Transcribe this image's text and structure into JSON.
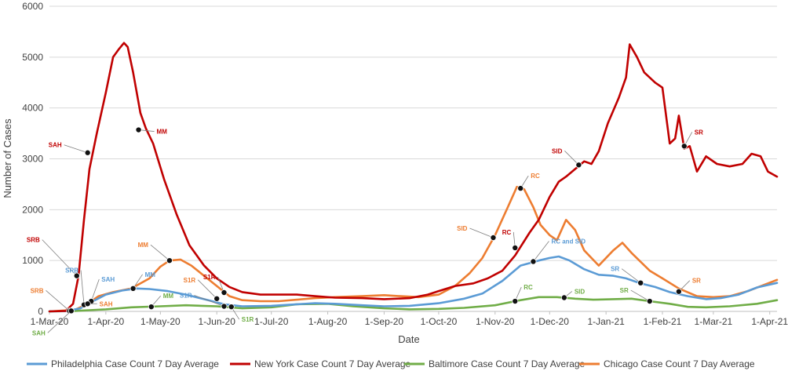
{
  "chart_data": {
    "type": "line",
    "title": "",
    "xlabel": "Date",
    "ylabel": "Number of Cases",
    "ylim": [
      0,
      6000
    ],
    "yticks": [
      0,
      1000,
      2000,
      3000,
      4000,
      5000,
      6000
    ],
    "xlim": [
      "2020-03-01",
      "2021-04-05"
    ],
    "xticks": [
      {
        "date": "2020-03-01",
        "label": "1-Mar-20"
      },
      {
        "date": "2020-04-01",
        "label": "1-Apr-20"
      },
      {
        "date": "2020-05-01",
        "label": "1-May-20"
      },
      {
        "date": "2020-06-01",
        "label": "1-Jun-20"
      },
      {
        "date": "2020-07-01",
        "label": "1-Jul-20"
      },
      {
        "date": "2020-08-01",
        "label": "1-Aug-20"
      },
      {
        "date": "2020-09-01",
        "label": "1-Sep-20"
      },
      {
        "date": "2020-10-01",
        "label": "1-Oct-20"
      },
      {
        "date": "2020-11-01",
        "label": "1-Nov-20"
      },
      {
        "date": "2020-12-01",
        "label": "1-Dec-20"
      },
      {
        "date": "2021-01-01",
        "label": "1-Jan-21"
      },
      {
        "date": "2021-02-01",
        "label": "1-Feb-21"
      },
      {
        "date": "2021-03-01",
        "label": "1-Mar-21"
      },
      {
        "date": "2021-04-01",
        "label": "1-Apr-21"
      }
    ],
    "grid": "horizontal",
    "legend_position": "bottom",
    "series": [
      {
        "name": "Philadelphia Case Count 7 Day Average",
        "color": "#5B9BD5",
        "points": [
          [
            "2020-03-01",
            0
          ],
          [
            "2020-03-10",
            5
          ],
          [
            "2020-03-18",
            60
          ],
          [
            "2020-03-25",
            200
          ],
          [
            "2020-04-01",
            330
          ],
          [
            "2020-04-10",
            410
          ],
          [
            "2020-04-18",
            450
          ],
          [
            "2020-04-25",
            440
          ],
          [
            "2020-05-05",
            400
          ],
          [
            "2020-05-15",
            330
          ],
          [
            "2020-05-25",
            240
          ],
          [
            "2020-06-05",
            140
          ],
          [
            "2020-06-15",
            100
          ],
          [
            "2020-07-01",
            110
          ],
          [
            "2020-07-15",
            140
          ],
          [
            "2020-07-25",
            160
          ],
          [
            "2020-08-05",
            150
          ],
          [
            "2020-08-20",
            120
          ],
          [
            "2020-09-01",
            100
          ],
          [
            "2020-09-15",
            110
          ],
          [
            "2020-10-01",
            160
          ],
          [
            "2020-10-15",
            250
          ],
          [
            "2020-10-25",
            350
          ],
          [
            "2020-11-05",
            600
          ],
          [
            "2020-11-15",
            900
          ],
          [
            "2020-11-25",
            1000
          ],
          [
            "2020-12-01",
            1050
          ],
          [
            "2020-12-06",
            1080
          ],
          [
            "2020-12-12",
            1000
          ],
          [
            "2020-12-20",
            830
          ],
          [
            "2020-12-28",
            720
          ],
          [
            "2021-01-05",
            700
          ],
          [
            "2021-01-12",
            650
          ],
          [
            "2021-01-20",
            550
          ],
          [
            "2021-01-28",
            480
          ],
          [
            "2021-02-05",
            380
          ],
          [
            "2021-02-15",
            300
          ],
          [
            "2021-02-25",
            240
          ],
          [
            "2021-03-05",
            260
          ],
          [
            "2021-03-15",
            330
          ],
          [
            "2021-03-25",
            470
          ],
          [
            "2021-04-05",
            560
          ]
        ]
      },
      {
        "name": "New York Case Count 7 Day Average",
        "color": "#C00000",
        "points": [
          [
            "2020-03-01",
            0
          ],
          [
            "2020-03-10",
            10
          ],
          [
            "2020-03-14",
            150
          ],
          [
            "2020-03-17",
            700
          ],
          [
            "2020-03-20",
            1800
          ],
          [
            "2020-03-23",
            2800
          ],
          [
            "2020-03-27",
            3500
          ],
          [
            "2020-04-01",
            4300
          ],
          [
            "2020-04-05",
            5000
          ],
          [
            "2020-04-08",
            5150
          ],
          [
            "2020-04-11",
            5280
          ],
          [
            "2020-04-13",
            5200
          ],
          [
            "2020-04-16",
            4700
          ],
          [
            "2020-04-20",
            3900
          ],
          [
            "2020-04-23",
            3600
          ],
          [
            "2020-04-27",
            3300
          ],
          [
            "2020-05-03",
            2600
          ],
          [
            "2020-05-10",
            1900
          ],
          [
            "2020-05-17",
            1300
          ],
          [
            "2020-05-25",
            900
          ],
          [
            "2020-06-01",
            650
          ],
          [
            "2020-06-08",
            480
          ],
          [
            "2020-06-15",
            380
          ],
          [
            "2020-06-25",
            330
          ],
          [
            "2020-07-05",
            330
          ],
          [
            "2020-07-15",
            330
          ],
          [
            "2020-07-25",
            300
          ],
          [
            "2020-08-05",
            270
          ],
          [
            "2020-08-20",
            260
          ],
          [
            "2020-09-01",
            240
          ],
          [
            "2020-09-15",
            260
          ],
          [
            "2020-09-25",
            330
          ],
          [
            "2020-10-01",
            400
          ],
          [
            "2020-10-10",
            500
          ],
          [
            "2020-10-20",
            550
          ],
          [
            "2020-10-28",
            650
          ],
          [
            "2020-11-05",
            800
          ],
          [
            "2020-11-12",
            1100
          ],
          [
            "2020-11-20",
            1550
          ],
          [
            "2020-11-25",
            1800
          ],
          [
            "2020-12-01",
            2250
          ],
          [
            "2020-12-06",
            2550
          ],
          [
            "2020-12-10",
            2650
          ],
          [
            "2020-12-15",
            2800
          ],
          [
            "2020-12-20",
            2950
          ],
          [
            "2020-12-24",
            2900
          ],
          [
            "2020-12-28",
            3150
          ],
          [
            "2021-01-02",
            3700
          ],
          [
            "2021-01-08",
            4200
          ],
          [
            "2021-01-12",
            4600
          ],
          [
            "2021-01-14",
            5250
          ],
          [
            "2021-01-18",
            5000
          ],
          [
            "2021-01-22",
            4700
          ],
          [
            "2021-01-28",
            4500
          ],
          [
            "2021-02-01",
            4400
          ],
          [
            "2021-02-05",
            3300
          ],
          [
            "2021-02-08",
            3400
          ],
          [
            "2021-02-10",
            3850
          ],
          [
            "2021-02-13",
            3200
          ],
          [
            "2021-02-16",
            3250
          ],
          [
            "2021-02-20",
            2750
          ],
          [
            "2021-02-25",
            3050
          ],
          [
            "2021-03-03",
            2900
          ],
          [
            "2021-03-10",
            2850
          ],
          [
            "2021-03-17",
            2900
          ],
          [
            "2021-03-22",
            3100
          ],
          [
            "2021-03-27",
            3050
          ],
          [
            "2021-03-31",
            2750
          ],
          [
            "2021-04-05",
            2650
          ]
        ]
      },
      {
        "name": "Baltimore Case Count 7 Day Average",
        "color": "#70AD47",
        "points": [
          [
            "2020-03-01",
            0
          ],
          [
            "2020-03-15",
            10
          ],
          [
            "2020-04-01",
            40
          ],
          [
            "2020-04-15",
            80
          ],
          [
            "2020-05-01",
            100
          ],
          [
            "2020-05-15",
            120
          ],
          [
            "2020-06-01",
            100
          ],
          [
            "2020-06-15",
            60
          ],
          [
            "2020-07-01",
            80
          ],
          [
            "2020-07-15",
            140
          ],
          [
            "2020-08-01",
            150
          ],
          [
            "2020-08-15",
            100
          ],
          [
            "2020-09-01",
            60
          ],
          [
            "2020-09-15",
            40
          ],
          [
            "2020-10-01",
            50
          ],
          [
            "2020-10-15",
            70
          ],
          [
            "2020-11-01",
            120
          ],
          [
            "2020-11-15",
            220
          ],
          [
            "2020-11-25",
            280
          ],
          [
            "2020-12-05",
            280
          ],
          [
            "2020-12-15",
            250
          ],
          [
            "2020-12-25",
            230
          ],
          [
            "2021-01-05",
            240
          ],
          [
            "2021-01-15",
            250
          ],
          [
            "2021-01-25",
            200
          ],
          [
            "2021-02-05",
            150
          ],
          [
            "2021-02-15",
            90
          ],
          [
            "2021-02-25",
            80
          ],
          [
            "2021-03-10",
            100
          ],
          [
            "2021-03-25",
            150
          ],
          [
            "2021-04-05",
            220
          ]
        ]
      },
      {
        "name": "Chicago Case Count 7 Day Average",
        "color": "#ED7D31",
        "points": [
          [
            "2020-03-01",
            0
          ],
          [
            "2020-03-15",
            30
          ],
          [
            "2020-03-22",
            150
          ],
          [
            "2020-03-28",
            300
          ],
          [
            "2020-04-05",
            380
          ],
          [
            "2020-04-15",
            450
          ],
          [
            "2020-04-25",
            650
          ],
          [
            "2020-05-01",
            880
          ],
          [
            "2020-05-06",
            1000
          ],
          [
            "2020-05-12",
            1020
          ],
          [
            "2020-05-18",
            900
          ],
          [
            "2020-05-25",
            700
          ],
          [
            "2020-06-01",
            500
          ],
          [
            "2020-06-08",
            300
          ],
          [
            "2020-06-15",
            220
          ],
          [
            "2020-06-25",
            200
          ],
          [
            "2020-07-05",
            200
          ],
          [
            "2020-07-15",
            230
          ],
          [
            "2020-07-25",
            260
          ],
          [
            "2020-08-05",
            280
          ],
          [
            "2020-08-20",
            300
          ],
          [
            "2020-09-01",
            320
          ],
          [
            "2020-09-10",
            300
          ],
          [
            "2020-09-20",
            280
          ],
          [
            "2020-10-01",
            330
          ],
          [
            "2020-10-10",
            500
          ],
          [
            "2020-10-18",
            750
          ],
          [
            "2020-10-25",
            1050
          ],
          [
            "2020-11-01",
            1500
          ],
          [
            "2020-11-08",
            2050
          ],
          [
            "2020-11-13",
            2450
          ],
          [
            "2020-11-17",
            2400
          ],
          [
            "2020-11-22",
            2050
          ],
          [
            "2020-11-26",
            1700
          ],
          [
            "2020-12-01",
            1500
          ],
          [
            "2020-12-05",
            1400
          ],
          [
            "2020-12-10",
            1800
          ],
          [
            "2020-12-15",
            1600
          ],
          [
            "2020-12-20",
            1200
          ],
          [
            "2020-12-28",
            900
          ],
          [
            "2021-01-05",
            1200
          ],
          [
            "2021-01-10",
            1350
          ],
          [
            "2021-01-15",
            1150
          ],
          [
            "2021-01-25",
            800
          ],
          [
            "2021-02-01",
            650
          ],
          [
            "2021-02-10",
            450
          ],
          [
            "2021-02-20",
            300
          ],
          [
            "2021-03-01",
            280
          ],
          [
            "2021-03-10",
            300
          ],
          [
            "2021-03-20",
            400
          ],
          [
            "2021-04-05",
            620
          ]
        ]
      }
    ],
    "annotations": [
      {
        "text": "SRB",
        "series": 1,
        "date": "2020-03-16",
        "y": 700,
        "dir": "ul",
        "tdx": -44,
        "tdy": -46
      },
      {
        "text": "SAH",
        "series": 1,
        "date": "2020-03-22",
        "y": 3120,
        "dir": "ul",
        "tdx": -30,
        "tdy": -10
      },
      {
        "text": "MM",
        "series": 1,
        "date": "2020-04-19",
        "y": 3570,
        "dir": "r",
        "tdx": 20,
        "tdy": 2
      },
      {
        "text": "S1R",
        "series": 1,
        "date": "2020-06-05",
        "y": 370,
        "dir": "ur",
        "tdx": -8,
        "tdy": -20
      },
      {
        "text": "RC",
        "series": 1,
        "date": "2020-11-12",
        "y": 1250,
        "dir": "ur",
        "tdx": -2,
        "tdy": -20
      },
      {
        "text": "SID",
        "series": 1,
        "date": "2020-12-17",
        "y": 2880,
        "dir": "ul",
        "tdx": -18,
        "tdy": -18
      },
      {
        "text": "SR",
        "series": 1,
        "date": "2021-02-13",
        "y": 3250,
        "dir": "ur",
        "tdx": 10,
        "tdy": -18
      },
      {
        "text": "SRB",
        "series": 0,
        "date": "2020-03-20",
        "y": 130,
        "dir": "ur",
        "tdx": -4,
        "tdy": -44
      },
      {
        "text": "SAH",
        "series": 0,
        "date": "2020-03-24",
        "y": 200,
        "dir": "ur",
        "tdx": 10,
        "tdy": -28
      },
      {
        "text": "MM",
        "series": 0,
        "date": "2020-04-16",
        "y": 450,
        "dir": "ur",
        "tdx": 12,
        "tdy": -18
      },
      {
        "text": "S1R",
        "series": 0,
        "date": "2020-06-05",
        "y": 100,
        "dir": "ul",
        "tdx": -38,
        "tdy": -14
      },
      {
        "text": "RC and SID",
        "series": 0,
        "date": "2020-11-22",
        "y": 980,
        "dir": "ur",
        "tdx": 20,
        "tdy": -26
      },
      {
        "text": "SR",
        "series": 0,
        "date": "2021-01-20",
        "y": 560,
        "dir": "ul",
        "tdx": -24,
        "tdy": -18
      },
      {
        "text": "SRB",
        "series": 3,
        "date": "2020-03-12",
        "y": 10,
        "dir": "ul",
        "tdx": -30,
        "tdy": -26
      },
      {
        "text": "SAH",
        "series": 3,
        "date": "2020-03-22",
        "y": 150,
        "dir": "r",
        "tdx": 12,
        "tdy": 0
      },
      {
        "text": "MM",
        "series": 3,
        "date": "2020-05-06",
        "y": 1000,
        "dir": "ul",
        "tdx": -24,
        "tdy": -20
      },
      {
        "text": "S1R",
        "series": 3,
        "date": "2020-06-01",
        "y": 250,
        "dir": "ul",
        "tdx": -24,
        "tdy": -24
      },
      {
        "text": "SID",
        "series": 3,
        "date": "2020-10-31",
        "y": 1450,
        "dir": "ul",
        "tdx": -30,
        "tdy": -12
      },
      {
        "text": "RC",
        "series": 3,
        "date": "2020-11-15",
        "y": 2420,
        "dir": "ur",
        "tdx": 10,
        "tdy": -16
      },
      {
        "text": "SR",
        "series": 3,
        "date": "2021-02-10",
        "y": 390,
        "dir": "ur",
        "tdx": 14,
        "tdy": -14
      },
      {
        "text": "SAH",
        "series": 2,
        "date": "2020-03-13",
        "y": 10,
        "dir": "dl",
        "tdx": -30,
        "tdy": 28
      },
      {
        "text": "MM",
        "series": 2,
        "date": "2020-04-26",
        "y": 90,
        "dir": "ur",
        "tdx": 12,
        "tdy": -14
      },
      {
        "text": "S1R",
        "series": 2,
        "date": "2020-06-09",
        "y": 90,
        "dir": "dr",
        "tdx": 10,
        "tdy": 16
      },
      {
        "text": "RC",
        "series": 2,
        "date": "2020-11-12",
        "y": 200,
        "dir": "ur",
        "tdx": 8,
        "tdy": -18
      },
      {
        "text": "SID",
        "series": 2,
        "date": "2020-12-09",
        "y": 270,
        "dir": "ur",
        "tdx": 10,
        "tdy": -8
      },
      {
        "text": "SR",
        "series": 2,
        "date": "2021-01-25",
        "y": 200,
        "dir": "ul",
        "tdx": -24,
        "tdy": -14
      }
    ]
  }
}
